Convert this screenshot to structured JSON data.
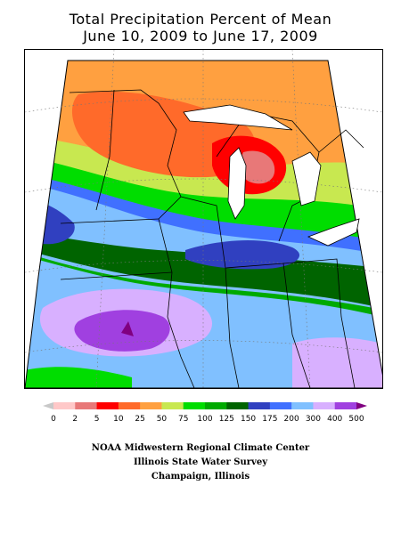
{
  "title_line1": "Total Precipitation Percent of Mean",
  "title_line2": "June 10, 2009 to June 17, 2009",
  "legend": {
    "colors": [
      "#c8c8c8",
      "#ffc8c8",
      "#e87878",
      "#ff0000",
      "#ff6a2a",
      "#ffa040",
      "#c8e850",
      "#00dd00",
      "#00aa00",
      "#006400",
      "#3040c0",
      "#4070ff",
      "#80c0ff",
      "#d8b0ff",
      "#a040e0",
      "#800080"
    ],
    "labels": [
      "0",
      "2",
      "5",
      "10",
      "25",
      "50",
      "75",
      "100",
      "125",
      "150",
      "175",
      "200",
      "300",
      "400",
      "500"
    ]
  },
  "credits": {
    "line1": "NOAA Midwestern Regional Climate Center",
    "line2": "Illinois State Water Survey",
    "line3": "Champaign, Illinois"
  }
}
